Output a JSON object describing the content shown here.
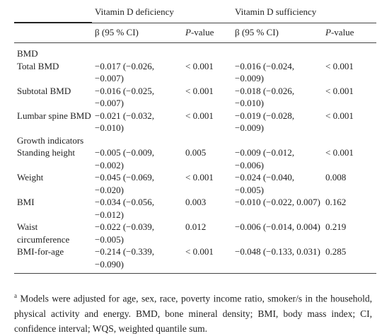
{
  "table": {
    "header": {
      "groups": [
        "Vitamin D deficiency",
        "Vitamin D sufficiency"
      ],
      "columns": [
        "β (95 % CI)",
        "P-value",
        "β (95 % CI)",
        "P-value"
      ]
    },
    "rows": [
      {
        "label": "BMD"
      },
      {
        "label": "Total BMD",
        "cells": [
          "−0.017 (−0.026, −0.007)",
          "< 0.001",
          "−0.016 (−0.024, −0.009)",
          "< 0.001"
        ]
      },
      {
        "label": "Subtotal BMD",
        "cells": [
          "−0.016 (−0.025, −0.007)",
          "< 0.001",
          "−0.018 (−0.026, −0.010)",
          "< 0.001"
        ]
      },
      {
        "label": "Lumbar spine BMD",
        "cells": [
          "−0.021 (−0.032, −0.010)",
          "< 0.001",
          "−0.019 (−0.028, −0.009)",
          "< 0.001"
        ]
      },
      {
        "label": "Growth indicators"
      },
      {
        "label": "Standing height",
        "cells": [
          "−0.005 (−0.009, −0.002)",
          "0.005",
          "−0.009 (−0.012, −0.006)",
          "< 0.001"
        ]
      },
      {
        "label": "Weight",
        "cells": [
          "−0.045 (−0.069, −0.020)",
          "< 0.001",
          "−0.024 (−0.040, −0.005)",
          "0.008"
        ]
      },
      {
        "label": "BMI",
        "cells": [
          "−0.034 (−0.056, −0.012)",
          "0.003",
          "−0.010 (−0.022, 0.007)",
          "0.162"
        ]
      },
      {
        "label": "Waist circumference",
        "cells": [
          "−0.022 (−0.039, −0.005)",
          "0.012",
          "−0.006 (−0.014, 0.004)",
          "0.219"
        ]
      },
      {
        "label": "BMI-for-age",
        "cells": [
          "−0.214 (−0.339, −0.090)",
          "< 0.001",
          "−0.048 (−0.133, 0.031)",
          "0.285"
        ]
      }
    ]
  },
  "footnote": {
    "marker": "a",
    "text": "Models were adjusted for age, sex, race, poverty income ratio, smoker/s in the household, physical activity and energy. BMD, bone mineral density; BMI, body mass index; CI, confidence interval; WQS, weighted quantile sum."
  }
}
